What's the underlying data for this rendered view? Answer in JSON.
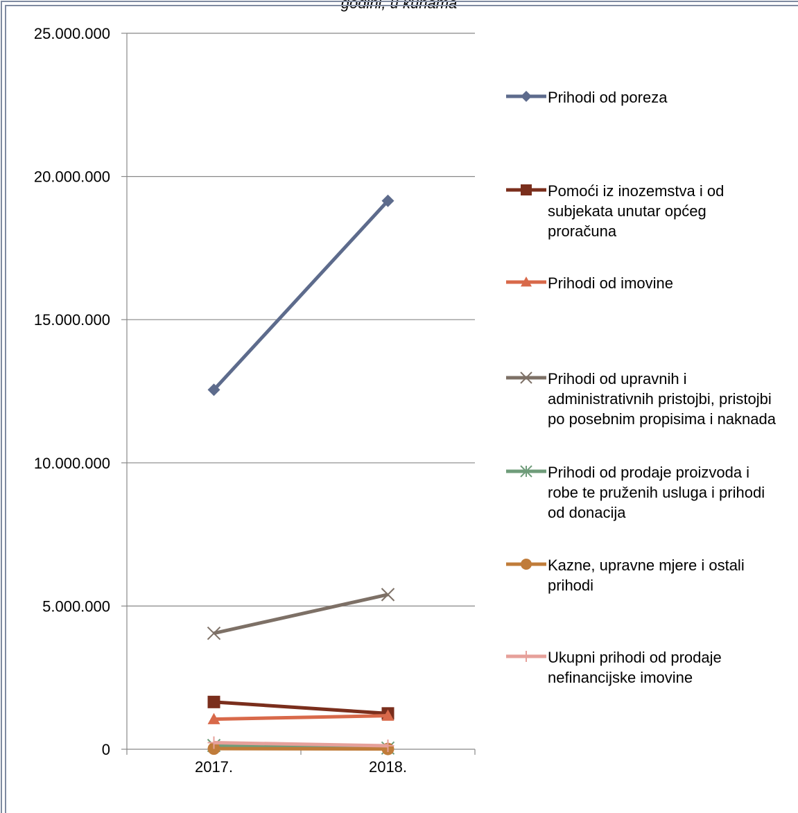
{
  "chart_data": {
    "type": "line",
    "title": "godini, u kunama",
    "categories": [
      "2017.",
      "2018."
    ],
    "ylim": [
      0,
      25000000
    ],
    "yticks": [
      {
        "value": 0,
        "label": "0"
      },
      {
        "value": 5000000,
        "label": "5.000.000"
      },
      {
        "value": 10000000,
        "label": "10.000.000"
      },
      {
        "value": 15000000,
        "label": "15.000.000"
      },
      {
        "value": 20000000,
        "label": "20.000.000"
      },
      {
        "value": 25000000,
        "label": "25.000.000"
      }
    ],
    "grid": true,
    "legend_position": "right",
    "series": [
      {
        "name": "Prihodi od poreza",
        "values": [
          12550000,
          19150000
        ],
        "color": "#5d6b8c",
        "marker": "diamond"
      },
      {
        "name": "Pomoći iz inozemstva i od subjekata unutar općeg proračuna",
        "values": [
          1650000,
          1250000
        ],
        "color": "#7a2e1c",
        "marker": "square"
      },
      {
        "name": "Prihodi od imovine",
        "values": [
          1050000,
          1170000
        ],
        "color": "#d8694a",
        "marker": "triangle"
      },
      {
        "name": "Prihodi od upravnih i administrativnih pristojbi, pristojbi po posebnim propisima i naknada",
        "values": [
          4050000,
          5400000
        ],
        "color": "#7d7066",
        "marker": "x"
      },
      {
        "name": "Prihodi od prodaje proizvoda i robe te pruženih usluga i prihodi od donacija",
        "values": [
          130000,
          40000
        ],
        "color": "#6f9c7a",
        "marker": "star"
      },
      {
        "name": "Kazne, upravne mjere i ostali prihodi",
        "values": [
          20000,
          10000
        ],
        "color": "#c07c3a",
        "marker": "circle"
      },
      {
        "name": "Ukupni prihodi od prodaje nefinancijske imovine",
        "values": [
          230000,
          120000
        ],
        "color": "#e6a09a",
        "marker": "plus"
      }
    ]
  }
}
